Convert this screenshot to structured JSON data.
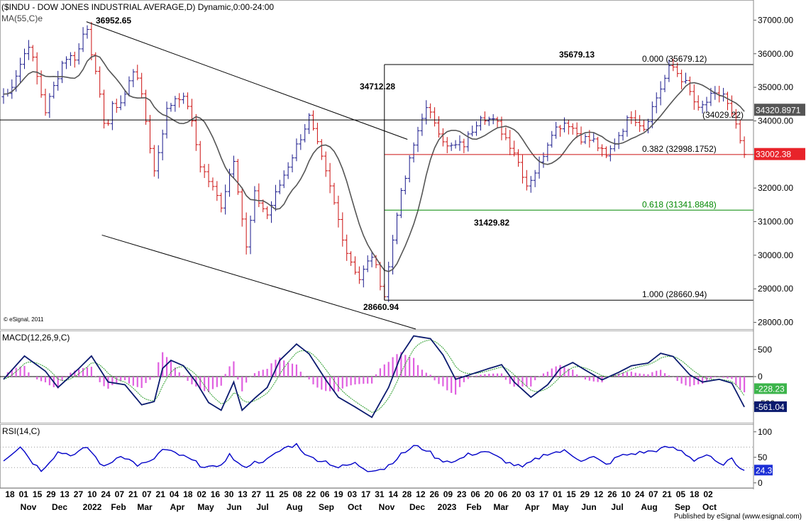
{
  "header": {
    "title": "($INDU - DOW JONES INDUSTRIAL AVERAGE,D) Dynamic,0:00-24:00",
    "ma_label": "MA(55,C)e",
    "watermark": "© eSignal, 2011"
  },
  "footer": {
    "text": "Published by eSignal (www.esignal.com)"
  },
  "colors": {
    "up": "#1a1a8c",
    "down": "#cc1111",
    "ma": "#555555",
    "fib_mid": "#cc1111",
    "fib_618": "#008800",
    "macd_line": "#0a1a6e",
    "macd_signal": "#2e9e2e",
    "macd_hist": "#e060e0",
    "rsi_line": "#0000c8",
    "price_tag": "#e8232a",
    "macd_tag": "#3cb44b",
    "rsi_tag": "#1c2fd6"
  },
  "chart_data": [
    {
      "type": "candlestick",
      "panel": "price",
      "x_labels": {
        "days": [
          "18",
          "01",
          "15",
          "29",
          "13",
          "27",
          "10",
          "24",
          "07",
          "21",
          "07",
          "21",
          "04",
          "18",
          "02",
          "16",
          "30",
          "13",
          "27",
          "11",
          "25",
          "08",
          "22",
          "06",
          "19",
          "03",
          "17",
          "31",
          "14",
          "28",
          "12",
          "26",
          "09",
          "23",
          "06",
          "20",
          "06",
          "20",
          "03",
          "17",
          "01",
          "15",
          "29",
          "12",
          "26",
          "10",
          "24",
          "07",
          "21",
          "05",
          "18",
          "02"
        ],
        "months": [
          "Nov",
          "Dec",
          "2022",
          "Feb",
          "Mar",
          "Apr",
          "May",
          "Jun",
          "Jul",
          "Aug",
          "Sep",
          "Oct",
          "Nov",
          "Dec",
          "2023",
          "Feb",
          "Mar",
          "Apr",
          "May",
          "Jun",
          "Jul",
          "Aug",
          "Sep",
          "Oct"
        ]
      },
      "y_axis": {
        "ticks": [
          37000,
          36000,
          35000,
          34000,
          33000,
          32000,
          31000,
          30000,
          29000,
          28000
        ],
        "tick_labels": [
          "37000.00",
          "36000.00",
          "35000.00",
          "34000.00",
          "33000.00",
          "32000.00",
          "31000.00",
          "30000.00",
          "29000.00",
          "28000.00"
        ],
        "range": [
          27800,
          37600
        ]
      },
      "key_points": [
        {
          "x": 1.0,
          "close": 34800
        },
        {
          "x": 6.0,
          "close": 36300
        },
        {
          "x": 10.0,
          "close": 34300
        },
        {
          "x": 14.5,
          "close": 35900
        },
        {
          "x": 17.5,
          "close": 35900
        },
        {
          "x": 19.8,
          "close": 36952.65
        },
        {
          "x": 22.5,
          "close": 35000
        },
        {
          "x": 24.5,
          "close": 33700
        },
        {
          "x": 26.0,
          "close": 34400
        },
        {
          "x": 28.5,
          "close": 34600
        },
        {
          "x": 31.5,
          "close": 35700
        },
        {
          "x": 34.0,
          "close": 34000
        },
        {
          "x": 36.0,
          "close": 32500
        },
        {
          "x": 39.0,
          "close": 34300
        },
        {
          "x": 41.5,
          "close": 34800
        },
        {
          "x": 44.0,
          "close": 34500
        },
        {
          "x": 47.0,
          "close": 32700
        },
        {
          "x": 52.0,
          "close": 31500
        },
        {
          "x": 55.0,
          "close": 32900
        },
        {
          "x": 58.0,
          "close": 30200
        },
        {
          "x": 60.0,
          "close": 31800
        },
        {
          "x": 63.0,
          "close": 31200
        },
        {
          "x": 67.0,
          "close": 32400
        },
        {
          "x": 73.0,
          "close": 34100
        },
        {
          "x": 78.0,
          "close": 32000
        },
        {
          "x": 82.0,
          "close": 30100
        },
        {
          "x": 85.0,
          "close": 29300
        },
        {
          "x": 88.0,
          "close": 30000
        },
        {
          "x": 91.0,
          "close": 28800
        },
        {
          "x": 94.0,
          "close": 31300
        },
        {
          "x": 97.0,
          "close": 32800
        },
        {
          "x": 100.5,
          "close": 34400
        },
        {
          "x": 103.0,
          "close": 34000
        },
        {
          "x": 106.0,
          "close": 33200
        },
        {
          "x": 110.0,
          "close": 33300
        },
        {
          "x": 114.0,
          "close": 34200
        },
        {
          "x": 118.0,
          "close": 33900
        },
        {
          "x": 122.0,
          "close": 33100
        },
        {
          "x": 125.0,
          "close": 32100
        },
        {
          "x": 128.0,
          "close": 32700
        },
        {
          "x": 131.0,
          "close": 33700
        },
        {
          "x": 134.5,
          "close": 34000
        },
        {
          "x": 138.0,
          "close": 33500
        },
        {
          "x": 141.0,
          "close": 33400
        },
        {
          "x": 144.0,
          "close": 32900
        },
        {
          "x": 147.0,
          "close": 33600
        },
        {
          "x": 150.0,
          "close": 34200
        },
        {
          "x": 153.0,
          "close": 33800
        },
        {
          "x": 156.0,
          "close": 34700
        },
        {
          "x": 159.5,
          "close": 35679.13
        },
        {
          "x": 163.0,
          "close": 35100
        },
        {
          "x": 166.0,
          "close": 34300
        },
        {
          "x": 169.0,
          "close": 34700
        },
        {
          "x": 172.0,
          "close": 34800
        },
        {
          "x": 175.0,
          "close": 33800
        },
        {
          "x": 177.0,
          "close": 33002.38
        }
      ],
      "ma_label": "MA(55,C)e",
      "annotations": [
        {
          "text": "36952.65",
          "x": 19.8,
          "y": 36952.65
        },
        {
          "text": "34712.28",
          "x": 89.0,
          "y": 34712.28
        },
        {
          "text": "35679.13",
          "x": 141.0,
          "y": 35679.13
        },
        {
          "text": "31429.82",
          "x": 122.0,
          "y": 31429.82
        },
        {
          "text": "28660.94",
          "x": 91.0,
          "y": 28660.94
        }
      ],
      "fib_levels": [
        {
          "label": "0.000 (35679.12)",
          "value": 35679.12
        },
        {
          "label": "0.382 (32998.1752)",
          "value": 32998.1752
        },
        {
          "label": "0.618 (31341.8848)",
          "value": 31341.8848
        },
        {
          "label": "1.000 (28660.94)",
          "value": 28660.94
        }
      ],
      "horizontal_line": {
        "label": "(34029.22)",
        "value": 34029.22
      },
      "price_tags": [
        {
          "text": "34320.8971",
          "value": 34320.8971
        },
        {
          "text": "33002.38",
          "value": 33002.38
        }
      ],
      "channel": {
        "upper": [
          {
            "x": 19.8,
            "y": 36952.65
          },
          {
            "x": 96.5,
            "y": 33450
          }
        ],
        "lower": [
          {
            "x": 23.5,
            "y": 30600
          },
          {
            "x": 98.5,
            "y": 27800
          }
        ]
      }
    },
    {
      "type": "macd",
      "panel": "macd",
      "label": "MACD(12,26,9,C)",
      "y_axis": {
        "tick_labels": [
          "500",
          "0",
          "-500"
        ],
        "ticks": [
          500,
          0,
          -500
        ],
        "range": [
          -850,
          850
        ]
      },
      "macd_points": [
        {
          "x": 0,
          "y": -50
        },
        {
          "x": 5,
          "y": 380
        },
        {
          "x": 10,
          "y": 100
        },
        {
          "x": 13,
          "y": -200
        },
        {
          "x": 18,
          "y": 150
        },
        {
          "x": 21,
          "y": 380
        },
        {
          "x": 25,
          "y": -100
        },
        {
          "x": 29,
          "y": -150
        },
        {
          "x": 33,
          "y": -520
        },
        {
          "x": 36,
          "y": -460
        },
        {
          "x": 38,
          "y": 150
        },
        {
          "x": 40,
          "y": 300
        },
        {
          "x": 43,
          "y": 200
        },
        {
          "x": 46,
          "y": -100
        },
        {
          "x": 49,
          "y": -480
        },
        {
          "x": 52,
          "y": -620
        },
        {
          "x": 55,
          "y": -100
        },
        {
          "x": 57,
          "y": -620
        },
        {
          "x": 60,
          "y": -400
        },
        {
          "x": 63,
          "y": -200
        },
        {
          "x": 66,
          "y": 300
        },
        {
          "x": 70,
          "y": 600
        },
        {
          "x": 73,
          "y": 420
        },
        {
          "x": 77,
          "y": -60
        },
        {
          "x": 80,
          "y": -380
        },
        {
          "x": 84,
          "y": -560
        },
        {
          "x": 88,
          "y": -750
        },
        {
          "x": 92,
          "y": -200
        },
        {
          "x": 95,
          "y": 400
        },
        {
          "x": 98,
          "y": 750
        },
        {
          "x": 102,
          "y": 700
        },
        {
          "x": 105,
          "y": 400
        },
        {
          "x": 108,
          "y": -50
        },
        {
          "x": 112,
          "y": 50
        },
        {
          "x": 116,
          "y": 150
        },
        {
          "x": 119,
          "y": 220
        },
        {
          "x": 122,
          "y": -100
        },
        {
          "x": 126,
          "y": -380
        },
        {
          "x": 130,
          "y": -150
        },
        {
          "x": 133,
          "y": 150
        },
        {
          "x": 136,
          "y": 260
        },
        {
          "x": 139,
          "y": 120
        },
        {
          "x": 143,
          "y": -60
        },
        {
          "x": 147,
          "y": 80
        },
        {
          "x": 150,
          "y": 200
        },
        {
          "x": 154,
          "y": 250
        },
        {
          "x": 157,
          "y": 430
        },
        {
          "x": 160,
          "y": 370
        },
        {
          "x": 164,
          "y": 30
        },
        {
          "x": 167,
          "y": -100
        },
        {
          "x": 171,
          "y": -50
        },
        {
          "x": 174,
          "y": -120
        },
        {
          "x": 177,
          "y": -560
        }
      ],
      "value_tags": [
        {
          "text": "-228.23",
          "value": -228.23,
          "color_key": "macd_tag"
        },
        {
          "text": "-561.04",
          "value": -561.04,
          "color_key": "rsi_tag"
        }
      ]
    },
    {
      "type": "line",
      "panel": "rsi",
      "label": "RSI(14,C)",
      "y_axis": {
        "tick_labels": [
          "100",
          "50",
          "0"
        ],
        "ticks": [
          100,
          50,
          0
        ],
        "range": [
          -10,
          115
        ]
      },
      "rsi_points": [
        {
          "x": 0,
          "y": 45
        },
        {
          "x": 4,
          "y": 72
        },
        {
          "x": 7,
          "y": 40
        },
        {
          "x": 9,
          "y": 25
        },
        {
          "x": 13,
          "y": 60
        },
        {
          "x": 17,
          "y": 55
        },
        {
          "x": 20,
          "y": 70
        },
        {
          "x": 24,
          "y": 30
        },
        {
          "x": 28,
          "y": 55
        },
        {
          "x": 32,
          "y": 35
        },
        {
          "x": 35,
          "y": 40
        },
        {
          "x": 38,
          "y": 65
        },
        {
          "x": 41,
          "y": 58
        },
        {
          "x": 44,
          "y": 48
        },
        {
          "x": 47,
          "y": 35
        },
        {
          "x": 51,
          "y": 28
        },
        {
          "x": 54,
          "y": 55
        },
        {
          "x": 57,
          "y": 30
        },
        {
          "x": 60,
          "y": 40
        },
        {
          "x": 63,
          "y": 45
        },
        {
          "x": 67,
          "y": 68
        },
        {
          "x": 70,
          "y": 75
        },
        {
          "x": 73,
          "y": 50
        },
        {
          "x": 77,
          "y": 42
        },
        {
          "x": 80,
          "y": 30
        },
        {
          "x": 84,
          "y": 38
        },
        {
          "x": 87,
          "y": 25
        },
        {
          "x": 91,
          "y": 28
        },
        {
          "x": 95,
          "y": 55
        },
        {
          "x": 98,
          "y": 72
        },
        {
          "x": 101,
          "y": 65
        },
        {
          "x": 104,
          "y": 45
        },
        {
          "x": 108,
          "y": 42
        },
        {
          "x": 111,
          "y": 55
        },
        {
          "x": 115,
          "y": 62
        },
        {
          "x": 118,
          "y": 50
        },
        {
          "x": 121,
          "y": 38
        },
        {
          "x": 124,
          "y": 30
        },
        {
          "x": 127,
          "y": 45
        },
        {
          "x": 130,
          "y": 58
        },
        {
          "x": 134,
          "y": 62
        },
        {
          "x": 138,
          "y": 45
        },
        {
          "x": 141,
          "y": 50
        },
        {
          "x": 144,
          "y": 35
        },
        {
          "x": 147,
          "y": 52
        },
        {
          "x": 151,
          "y": 58
        },
        {
          "x": 155,
          "y": 62
        },
        {
          "x": 159,
          "y": 70
        },
        {
          "x": 162,
          "y": 62
        },
        {
          "x": 165,
          "y": 45
        },
        {
          "x": 168,
          "y": 55
        },
        {
          "x": 171,
          "y": 35
        },
        {
          "x": 174,
          "y": 45
        },
        {
          "x": 177,
          "y": 24.3
        }
      ],
      "value_tag": {
        "text": "24.3",
        "value": 24.3
      }
    }
  ]
}
